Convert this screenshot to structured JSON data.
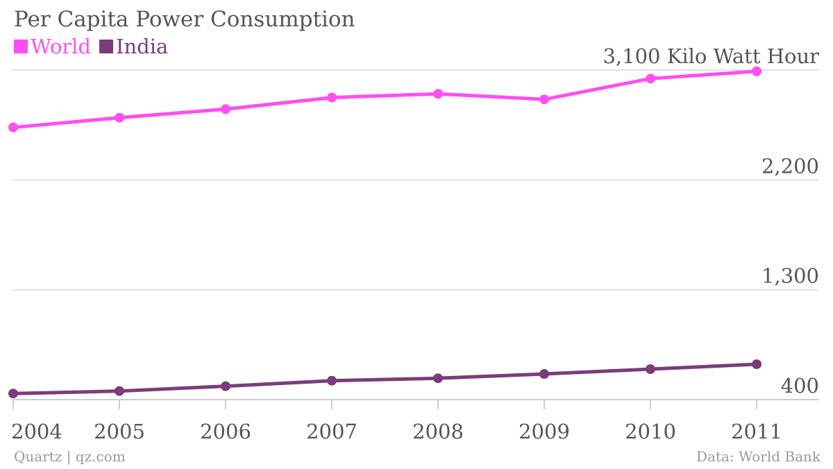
{
  "chart_data": {
    "type": "line",
    "title": "Per Capita Power Consumption",
    "x": [
      "2004",
      "2005",
      "2006",
      "2007",
      "2008",
      "2009",
      "2010",
      "2011"
    ],
    "series": [
      {
        "name": "World",
        "color": "#ff4ff0",
        "values": [
          2630,
          2710,
          2780,
          2875,
          2905,
          2860,
          3030,
          3090
        ]
      },
      {
        "name": "India",
        "color": "#7b3c7b",
        "values": [
          450,
          470,
          510,
          555,
          575,
          610,
          650,
          690
        ]
      }
    ],
    "y_ticks": [
      {
        "value": 3100,
        "label": "3,100 Kilo Watt Hour"
      },
      {
        "value": 2200,
        "label": "2,200"
      },
      {
        "value": 1300,
        "label": "1,300"
      },
      {
        "value": 400,
        "label": "400"
      }
    ],
    "ylim": [
      400,
      3100
    ],
    "grid": true,
    "legend": "top-left"
  },
  "footer": {
    "source_left": "Quartz | qz.com",
    "source_right": "Data: World Bank"
  }
}
